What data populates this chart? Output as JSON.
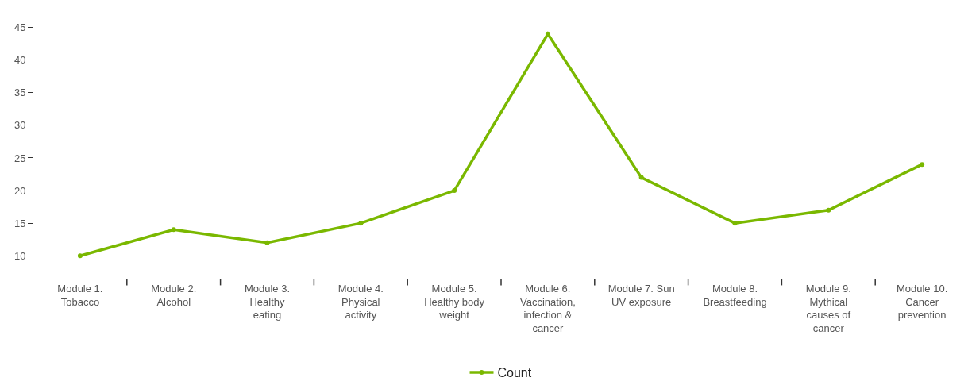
{
  "chart_data": {
    "type": "line",
    "categories": [
      "Module 1. Tobacco",
      "Module 2. Alcohol",
      "Module 3. Healthy eating",
      "Module 4. Physical activity",
      "Module 5. Healthy body weight",
      "Module 6. Vaccination, infection & cancer",
      "Module 7. Sun UV exposure",
      "Module 8. Breastfeeding",
      "Module 9. Mythical causes of cancer",
      "Module 10. Cancer prevention"
    ],
    "series": [
      {
        "name": "Count",
        "color": "#7ab800",
        "values": [
          10,
          14,
          12,
          15,
          20,
          44,
          22,
          15,
          17,
          24
        ]
      }
    ],
    "ylim": [
      6.5,
      47.5
    ],
    "yticks": [
      10,
      15,
      20,
      25,
      30,
      35,
      40,
      45
    ],
    "grid": false,
    "legend": "bottom",
    "marker": "circle",
    "line_style": "solid"
  }
}
